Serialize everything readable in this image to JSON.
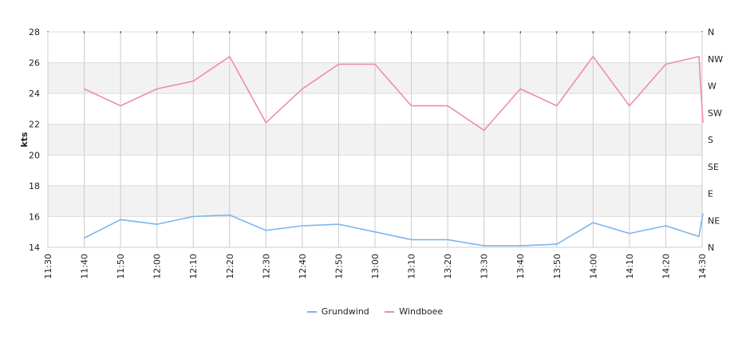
{
  "chart_data": {
    "type": "line",
    "ylabel": "kts",
    "ylim": [
      14,
      28
    ],
    "yticks": [
      "14",
      "16",
      "18",
      "20",
      "22",
      "24",
      "26",
      "28"
    ],
    "right_axis_labels": [
      "N",
      "NE",
      "E",
      "SE",
      "S",
      "SW",
      "W",
      "NW",
      "N"
    ],
    "x": [
      "11:30",
      "11:40",
      "11:50",
      "12:00",
      "12:10",
      "12:20",
      "12:30",
      "12:40",
      "12:50",
      "13:00",
      "13:10",
      "13:20",
      "13:30",
      "13:40",
      "13:50",
      "14:00",
      "14:10",
      "14:20",
      "14:30"
    ],
    "grid": true,
    "legend_position": "bottom",
    "series": [
      {
        "name": "Grundwind",
        "color": "#7cb5ec",
        "points": [
          [
            "11:40",
            14.6
          ],
          [
            "11:50",
            15.8
          ],
          [
            "12:00",
            15.5
          ],
          [
            "12:10",
            16.0
          ],
          [
            "12:20",
            16.1
          ],
          [
            "12:30",
            15.1
          ],
          [
            "12:40",
            15.4
          ],
          [
            "12:50",
            15.5
          ],
          [
            "13:00",
            15.0
          ],
          [
            "13:10",
            14.5
          ],
          [
            "13:20",
            14.5
          ],
          [
            "13:30",
            14.1
          ],
          [
            "13:40",
            14.1
          ],
          [
            "13:50",
            14.2
          ],
          [
            "14:00",
            15.6
          ],
          [
            "14:10",
            14.9
          ],
          [
            "14:20",
            15.4
          ],
          [
            "14:30",
            14.7
          ],
          [
            "14:30",
            16.2
          ]
        ]
      },
      {
        "name": "Windboee",
        "color": "#f08ab4",
        "points": [
          [
            "11:40",
            24.3
          ],
          [
            "11:50",
            23.2
          ],
          [
            "12:00",
            24.3
          ],
          [
            "12:10",
            24.8
          ],
          [
            "12:20",
            26.4
          ],
          [
            "12:30",
            22.1
          ],
          [
            "12:40",
            24.3
          ],
          [
            "12:50",
            25.9
          ],
          [
            "13:00",
            25.9
          ],
          [
            "13:10",
            23.2
          ],
          [
            "13:20",
            23.2
          ],
          [
            "13:30",
            21.6
          ],
          [
            "13:40",
            24.3
          ],
          [
            "13:50",
            23.2
          ],
          [
            "14:00",
            26.4
          ],
          [
            "14:10",
            23.2
          ],
          [
            "14:20",
            25.9
          ],
          [
            "14:30",
            26.4
          ],
          [
            "14:30",
            22.1
          ]
        ]
      }
    ]
  }
}
